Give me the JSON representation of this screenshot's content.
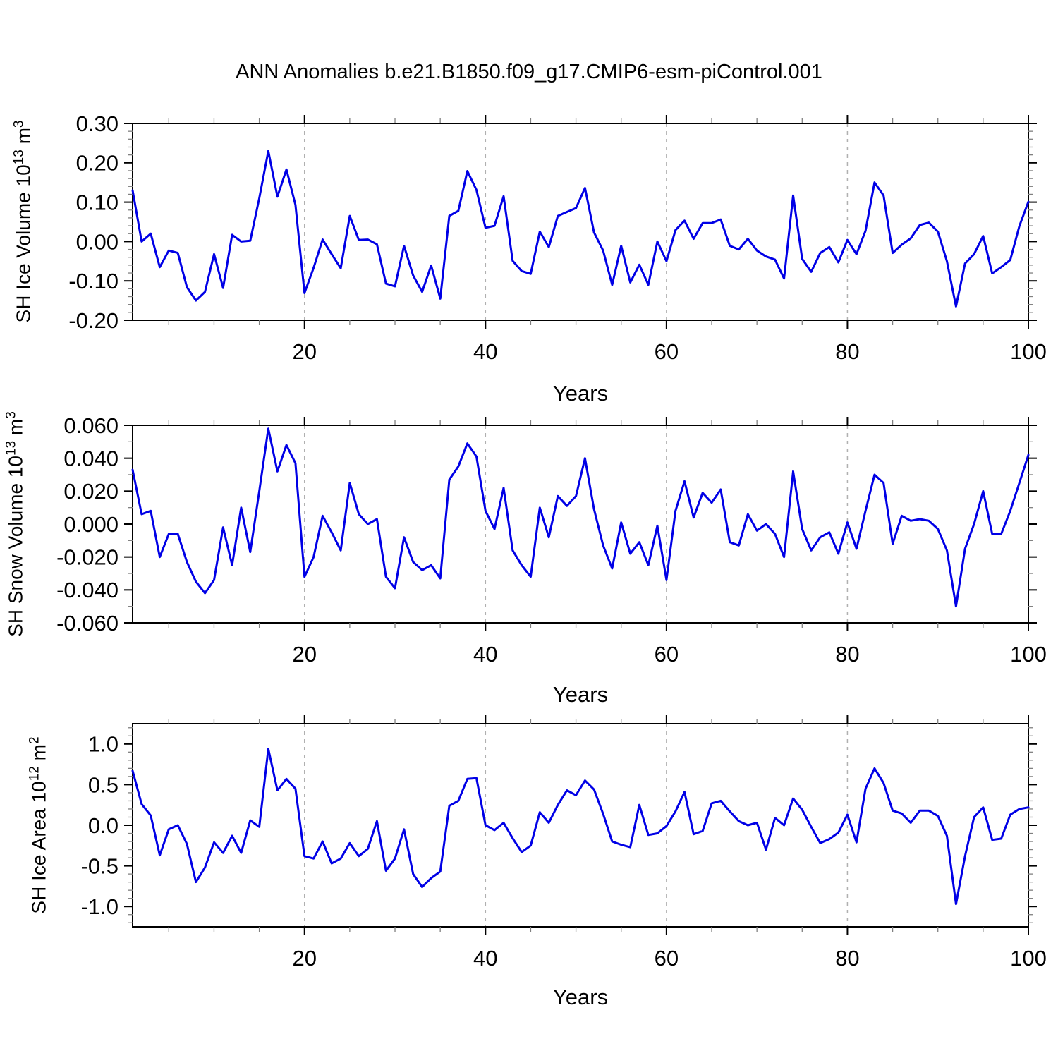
{
  "title": "ANN Anomalies b.e21.B1850.f09_g17.CMIP6-esm-piControl.001",
  "line_color": "#0000e6",
  "grid_color": "#b0b0b0",
  "axis_color": "#000000",
  "minor_tick_color": "#808080",
  "chart_data": [
    {
      "type": "line",
      "ylabel": "SH Ice Volume 10^13 m^3",
      "ylabel_segments": [
        [
          "SH Ice Volume 10",
          false
        ],
        [
          "13",
          true
        ],
        [
          " m",
          false
        ],
        [
          "3",
          true
        ]
      ],
      "xlabel": "Years",
      "xlim": [
        1,
        100
      ],
      "ylim": [
        -0.2,
        0.3
      ],
      "x_major_ticks": [
        20,
        40,
        60,
        80,
        100
      ],
      "x_tick_labels": [
        "20",
        "40",
        "60",
        "80",
        "100"
      ],
      "x_minor_step": 5,
      "y_major_ticks": [
        0.3,
        0.2,
        0.1,
        0.0,
        -0.1,
        -0.2
      ],
      "y_tick_labels": [
        "0.30",
        "0.20",
        "0.10",
        "0.00",
        "-0.10",
        "-0.20"
      ],
      "y_minor_step": 0.02,
      "grid_x": [
        20,
        40,
        60,
        80
      ],
      "legend": "none",
      "grid": "vertical-dashed",
      "x": [
        1,
        2,
        3,
        4,
        5,
        6,
        7,
        8,
        9,
        10,
        11,
        12,
        13,
        14,
        15,
        16,
        17,
        18,
        19,
        20,
        21,
        22,
        23,
        24,
        25,
        26,
        27,
        28,
        29,
        30,
        31,
        32,
        33,
        34,
        35,
        36,
        37,
        38,
        39,
        40,
        41,
        42,
        43,
        44,
        45,
        46,
        47,
        48,
        49,
        50,
        51,
        52,
        53,
        54,
        55,
        56,
        57,
        58,
        59,
        60,
        61,
        62,
        63,
        64,
        65,
        66,
        67,
        68,
        69,
        70,
        71,
        72,
        73,
        74,
        75,
        76,
        77,
        78,
        79,
        80,
        81,
        82,
        83,
        84,
        85,
        86,
        87,
        88,
        89,
        90,
        91,
        92,
        93,
        94,
        95,
        96,
        97,
        98,
        99,
        100
      ],
      "values": [
        0.13,
        0.0,
        0.02,
        -0.065,
        -0.023,
        -0.029,
        -0.116,
        -0.15,
        -0.128,
        -0.032,
        -0.118,
        0.017,
        0.0,
        0.002,
        0.11,
        0.23,
        0.114,
        0.183,
        0.093,
        -0.131,
        -0.067,
        0.005,
        -0.032,
        -0.068,
        0.065,
        0.004,
        0.005,
        -0.007,
        -0.107,
        -0.114,
        -0.011,
        -0.086,
        -0.128,
        -0.061,
        -0.145,
        0.065,
        0.078,
        0.179,
        0.131,
        0.035,
        0.04,
        0.115,
        -0.049,
        -0.075,
        -0.082,
        0.025,
        -0.014,
        0.065,
        0.075,
        0.085,
        0.136,
        0.023,
        -0.023,
        -0.11,
        -0.011,
        -0.104,
        -0.059,
        -0.11,
        0.0,
        -0.05,
        0.029,
        0.053,
        0.007,
        0.047,
        0.047,
        0.056,
        -0.011,
        -0.02,
        0.007,
        -0.023,
        -0.038,
        -0.046,
        -0.094,
        0.117,
        -0.044,
        -0.077,
        -0.029,
        -0.014,
        -0.053,
        0.004,
        -0.032,
        0.027,
        0.15,
        0.117,
        -0.029,
        -0.008,
        0.008,
        0.042,
        0.048,
        0.025,
        -0.05,
        -0.165,
        -0.056,
        -0.032,
        0.014,
        -0.081,
        -0.065,
        -0.047,
        0.039,
        0.101
      ]
    },
    {
      "type": "line",
      "ylabel": "SH Snow Volume 10^13 m^3",
      "ylabel_segments": [
        [
          "SH Snow Volume 10",
          false
        ],
        [
          "13",
          true
        ],
        [
          " m",
          false
        ],
        [
          "3",
          true
        ]
      ],
      "xlabel": "Years",
      "xlim": [
        1,
        100
      ],
      "ylim": [
        -0.06,
        0.06
      ],
      "x_major_ticks": [
        20,
        40,
        60,
        80,
        100
      ],
      "x_tick_labels": [
        "20",
        "40",
        "60",
        "80",
        "100"
      ],
      "x_minor_step": 5,
      "y_major_ticks": [
        0.06,
        0.04,
        0.02,
        0.0,
        -0.02,
        -0.04,
        -0.06
      ],
      "y_tick_labels": [
        "0.060",
        "0.040",
        "0.020",
        "0.000",
        "-0.020",
        "-0.040",
        "-0.060"
      ],
      "y_minor_step": 0.01,
      "grid_x": [
        20,
        40,
        60,
        80
      ],
      "legend": "none",
      "grid": "vertical-dashed",
      "x": [
        1,
        2,
        3,
        4,
        5,
        6,
        7,
        8,
        9,
        10,
        11,
        12,
        13,
        14,
        15,
        16,
        17,
        18,
        19,
        20,
        21,
        22,
        23,
        24,
        25,
        26,
        27,
        28,
        29,
        30,
        31,
        32,
        33,
        34,
        35,
        36,
        37,
        38,
        39,
        40,
        41,
        42,
        43,
        44,
        45,
        46,
        47,
        48,
        49,
        50,
        51,
        52,
        53,
        54,
        55,
        56,
        57,
        58,
        59,
        60,
        61,
        62,
        63,
        64,
        65,
        66,
        67,
        68,
        69,
        70,
        71,
        72,
        73,
        74,
        75,
        76,
        77,
        78,
        79,
        80,
        81,
        82,
        83,
        84,
        85,
        86,
        87,
        88,
        89,
        90,
        91,
        92,
        93,
        94,
        95,
        96,
        97,
        98,
        99,
        100
      ],
      "values": [
        0.033,
        0.006,
        0.008,
        -0.02,
        -0.006,
        -0.006,
        -0.023,
        -0.035,
        -0.042,
        -0.034,
        -0.002,
        -0.025,
        0.01,
        -0.017,
        0.02,
        0.058,
        0.032,
        0.048,
        0.037,
        -0.032,
        -0.02,
        0.005,
        -0.005,
        -0.016,
        0.025,
        0.006,
        0.0,
        0.003,
        -0.032,
        -0.039,
        -0.008,
        -0.023,
        -0.028,
        -0.025,
        -0.033,
        0.027,
        0.035,
        0.049,
        0.041,
        0.008,
        -0.003,
        0.022,
        -0.016,
        -0.025,
        -0.032,
        0.01,
        -0.008,
        0.017,
        0.011,
        0.017,
        0.04,
        0.009,
        -0.013,
        -0.027,
        0.001,
        -0.018,
        -0.011,
        -0.025,
        -0.001,
        -0.034,
        0.008,
        0.026,
        0.004,
        0.019,
        0.013,
        0.021,
        -0.011,
        -0.013,
        0.006,
        -0.004,
        0.0,
        -0.006,
        -0.02,
        0.032,
        -0.003,
        -0.016,
        -0.008,
        -0.005,
        -0.018,
        0.001,
        -0.015,
        0.008,
        0.03,
        0.025,
        -0.012,
        0.005,
        0.002,
        0.003,
        0.002,
        -0.003,
        -0.016,
        -0.05,
        -0.015,
        0.0,
        0.02,
        -0.006,
        -0.006,
        0.008,
        0.025,
        0.042
      ]
    },
    {
      "type": "line",
      "ylabel": "SH Ice Area 10^12 m^2",
      "ylabel_segments": [
        [
          "SH Ice Area 10",
          false
        ],
        [
          "12",
          true
        ],
        [
          " m",
          false
        ],
        [
          "2",
          true
        ]
      ],
      "xlabel": "Years",
      "xlim": [
        1,
        100
      ],
      "ylim": [
        -1.25,
        1.25
      ],
      "x_major_ticks": [
        20,
        40,
        60,
        80,
        100
      ],
      "x_tick_labels": [
        "20",
        "40",
        "60",
        "80",
        "100"
      ],
      "x_minor_step": 5,
      "y_major_ticks": [
        1.0,
        0.5,
        0.0,
        -0.5,
        -1.0
      ],
      "y_tick_labels": [
        "1.0",
        "0.5",
        "0.0",
        "-0.5",
        "-1.0"
      ],
      "y_minor_step": 0.1,
      "grid_x": [
        20,
        40,
        60,
        80
      ],
      "legend": "none",
      "grid": "vertical-dashed",
      "x": [
        1,
        2,
        3,
        4,
        5,
        6,
        7,
        8,
        9,
        10,
        11,
        12,
        13,
        14,
        15,
        16,
        17,
        18,
        19,
        20,
        21,
        22,
        23,
        24,
        25,
        26,
        27,
        28,
        29,
        30,
        31,
        32,
        33,
        34,
        35,
        36,
        37,
        38,
        39,
        40,
        41,
        42,
        43,
        44,
        45,
        46,
        47,
        48,
        49,
        50,
        51,
        52,
        53,
        54,
        55,
        56,
        57,
        58,
        59,
        60,
        61,
        62,
        63,
        64,
        65,
        66,
        67,
        68,
        69,
        70,
        71,
        72,
        73,
        74,
        75,
        76,
        77,
        78,
        79,
        80,
        81,
        82,
        83,
        84,
        85,
        86,
        87,
        88,
        89,
        90,
        91,
        92,
        93,
        94,
        95,
        96,
        97,
        98,
        99,
        100
      ],
      "values": [
        0.67,
        0.26,
        0.12,
        -0.37,
        -0.05,
        0.0,
        -0.23,
        -0.7,
        -0.52,
        -0.21,
        -0.34,
        -0.13,
        -0.34,
        0.06,
        -0.02,
        0.94,
        0.43,
        0.57,
        0.45,
        -0.38,
        -0.41,
        -0.2,
        -0.47,
        -0.41,
        -0.22,
        -0.38,
        -0.29,
        0.05,
        -0.56,
        -0.41,
        -0.05,
        -0.6,
        -0.76,
        -0.65,
        -0.57,
        0.24,
        0.3,
        0.57,
        0.58,
        0.0,
        -0.06,
        0.03,
        -0.16,
        -0.33,
        -0.25,
        0.16,
        0.03,
        0.25,
        0.43,
        0.37,
        0.55,
        0.44,
        0.14,
        -0.2,
        -0.24,
        -0.27,
        0.25,
        -0.12,
        -0.1,
        -0.01,
        0.17,
        0.41,
        -0.11,
        -0.07,
        0.27,
        0.3,
        0.17,
        0.05,
        0.0,
        0.03,
        -0.3,
        0.09,
        0.0,
        0.33,
        0.19,
        -0.02,
        -0.22,
        -0.17,
        -0.09,
        0.13,
        -0.21,
        0.45,
        0.7,
        0.52,
        0.18,
        0.145,
        0.03,
        0.18,
        0.18,
        0.115,
        -0.13,
        -0.97,
        -0.38,
        0.1,
        0.22,
        -0.18,
        -0.165,
        0.13,
        0.2,
        0.22
      ]
    }
  ]
}
